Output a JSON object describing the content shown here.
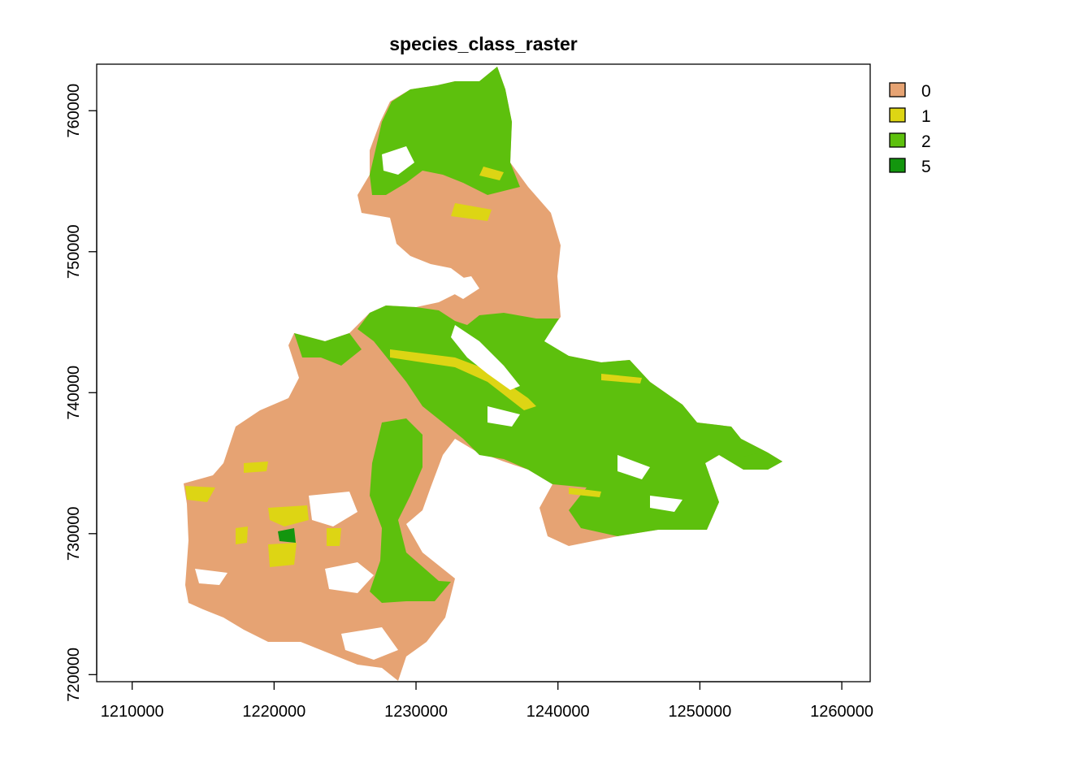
{
  "title": "species_class_raster",
  "map": {
    "type": "raster",
    "x_ticks": [
      1210000,
      1220000,
      1230000,
      1240000,
      1250000,
      1260000
    ],
    "y_ticks": [
      720000,
      730000,
      740000,
      750000,
      760000
    ],
    "xlim": [
      1207500,
      1262000
    ],
    "ylim": [
      719500,
      763300
    ],
    "legend": {
      "position": "top-right",
      "entries": [
        {
          "label": "0",
          "color": "#E6A373"
        },
        {
          "label": "1",
          "color": "#DDD514"
        },
        {
          "label": "2",
          "color": "#5DC00D"
        },
        {
          "label": "5",
          "color": "#13960E"
        }
      ]
    }
  }
}
